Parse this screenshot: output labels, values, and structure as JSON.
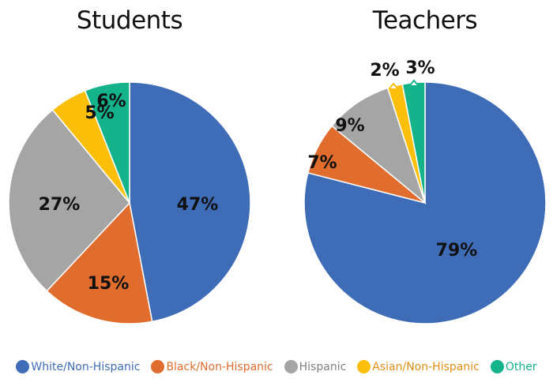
{
  "chart_data": [
    {
      "type": "pie",
      "title": "Students",
      "categories": [
        "White/Non-Hispanic",
        "Black/Non-Hispanic",
        "Hispanic",
        "Asian/Non-Hispanic",
        "Other"
      ],
      "values": [
        47,
        15,
        27,
        5,
        6
      ],
      "labels": [
        "47%",
        "15%",
        "27%",
        "5%",
        "6%"
      ]
    },
    {
      "type": "pie",
      "title": "Teachers",
      "categories": [
        "White/Non-Hispanic",
        "Black/Non-Hispanic",
        "Hispanic",
        "Asian/Non-Hispanic",
        "Other"
      ],
      "values": [
        79,
        7,
        9,
        2,
        3
      ],
      "labels": [
        "79%",
        "7%",
        "9%",
        "2%",
        "3%"
      ]
    }
  ],
  "legend": [
    {
      "label": "White/Non-Hispanic",
      "color": "#3f6cb7"
    },
    {
      "label": "Black/Non-Hispanic",
      "color": "#e06c2e"
    },
    {
      "label": "Hispanic",
      "color": "#a5a5a5"
    },
    {
      "label": "Asian/Non-Hispanic",
      "color": "#fbbf0a"
    },
    {
      "label": "Other",
      "color": "#14b38b"
    }
  ],
  "legend_text_colors": [
    "#3f6cb7",
    "#e06c2e",
    "#808080",
    "#e0901a",
    "#14b38b"
  ]
}
